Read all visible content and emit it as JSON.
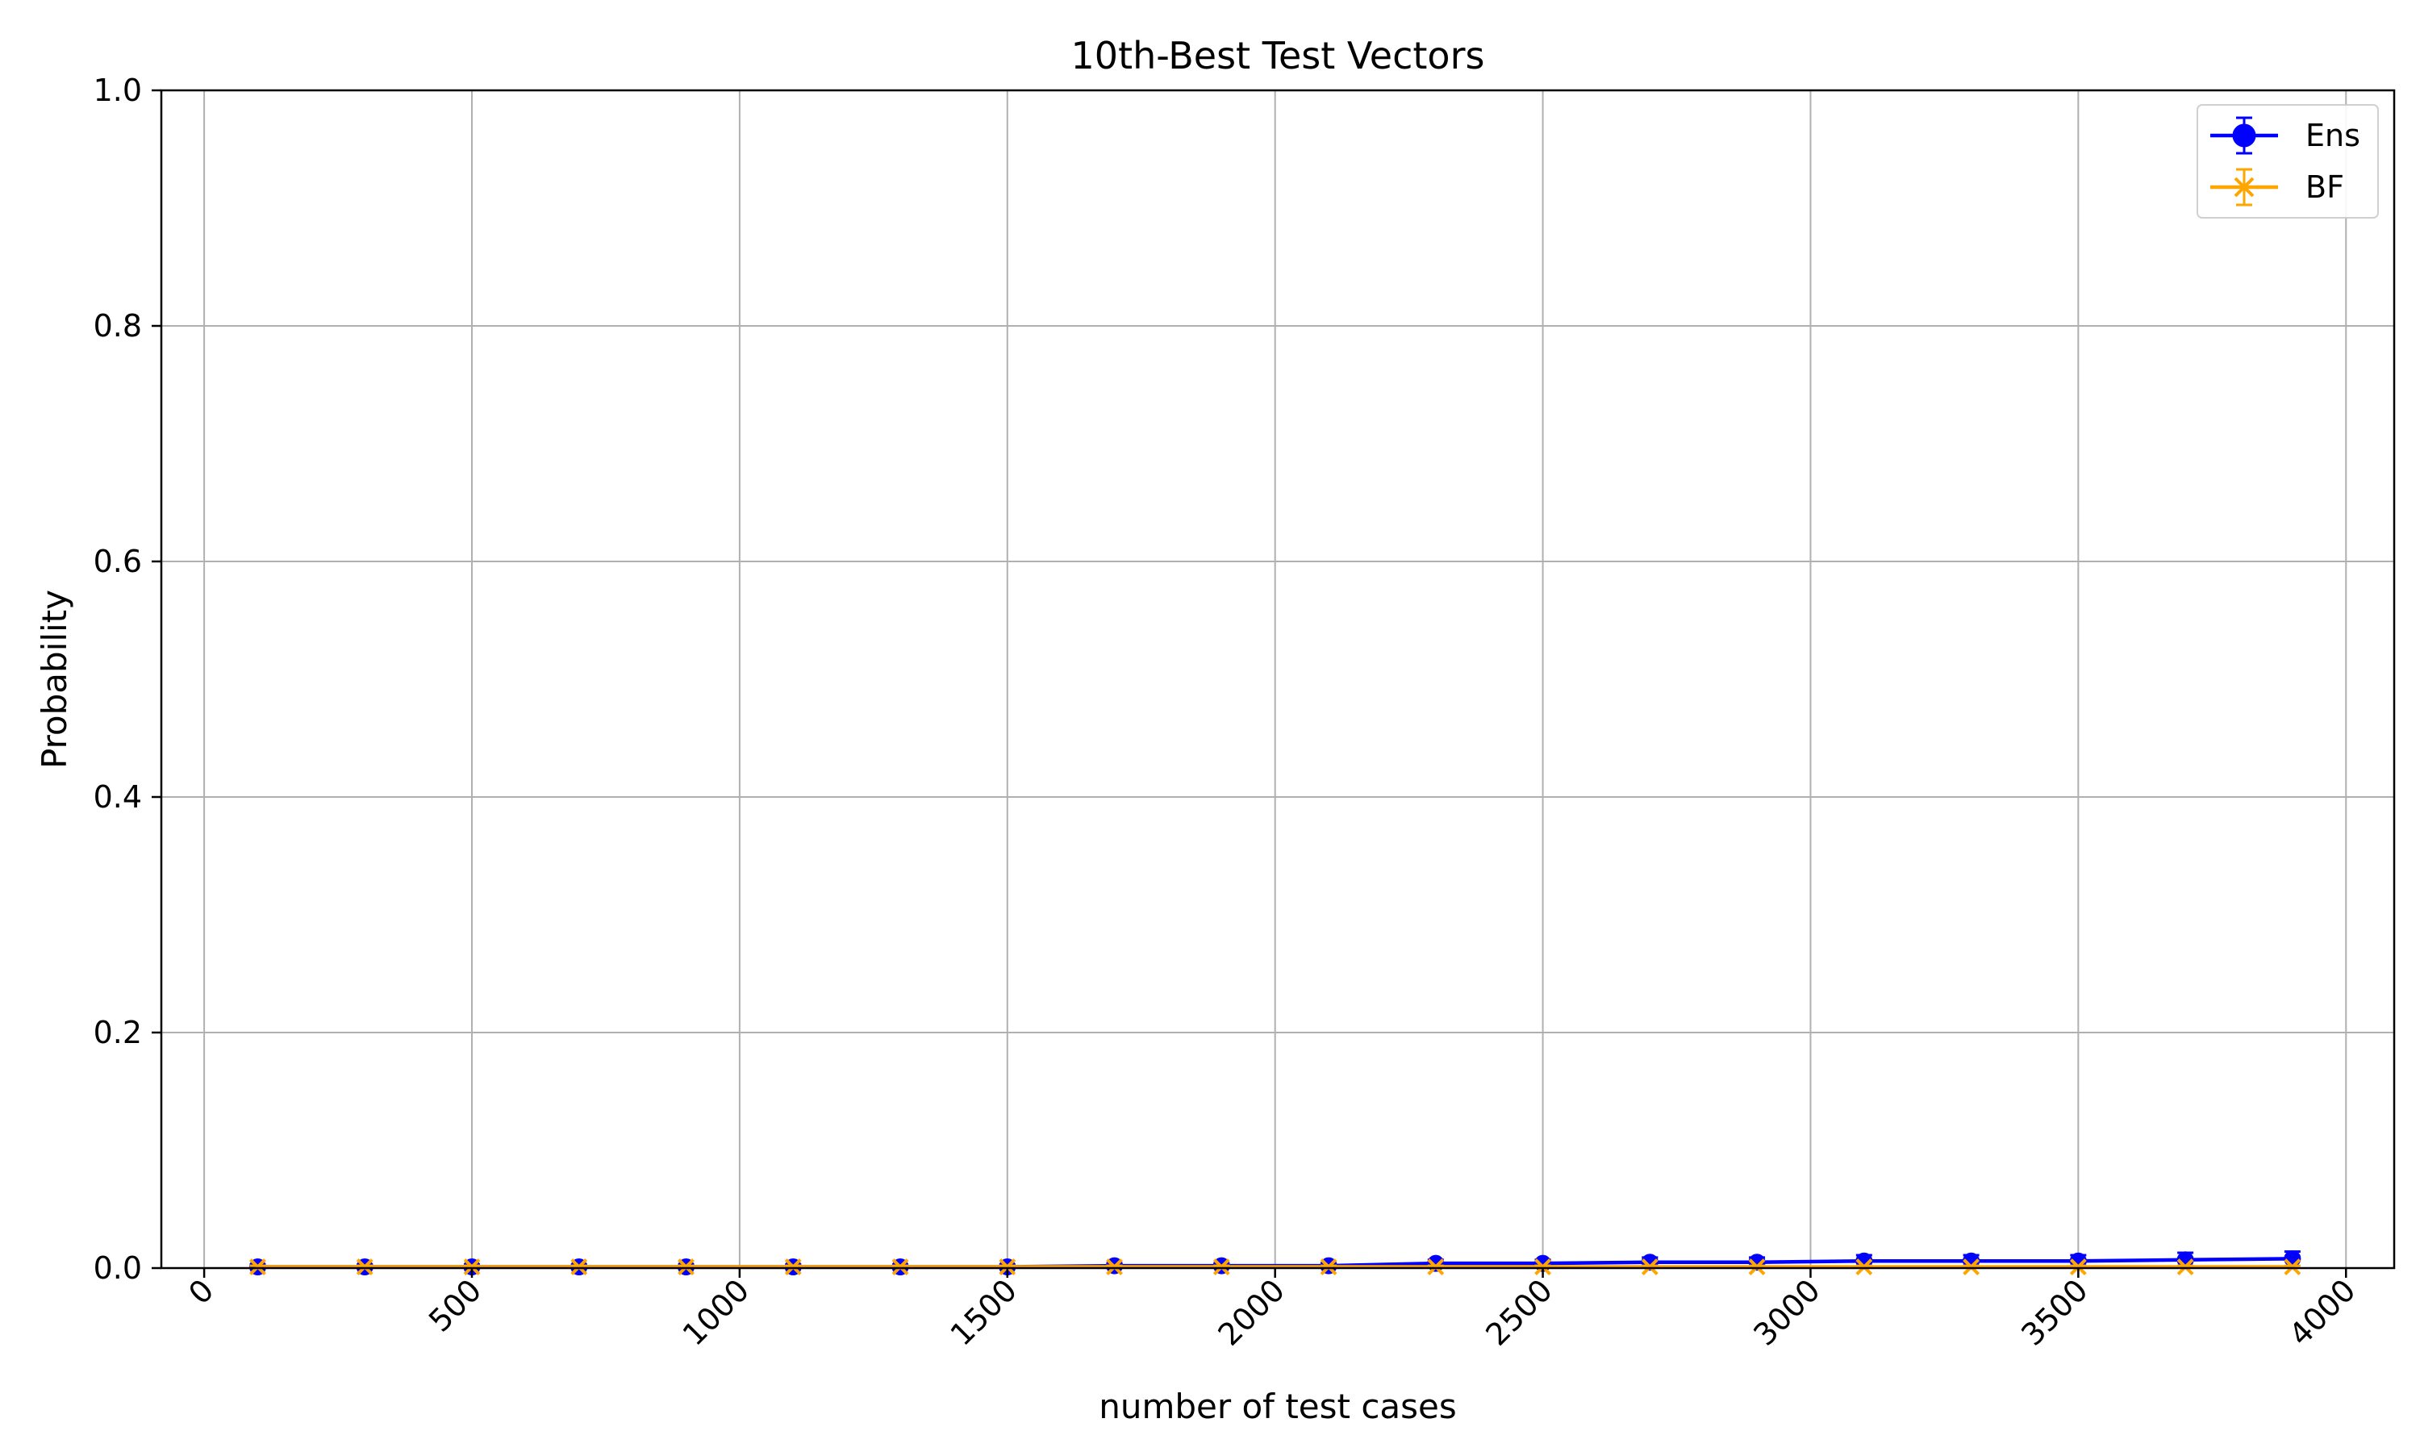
{
  "chart_data": {
    "type": "line",
    "title": "10th-Best Test Vectors",
    "xlabel": "number of test cases",
    "ylabel": "Probability",
    "xlim": [
      -80,
      4090
    ],
    "ylim": [
      0.0,
      1.0
    ],
    "xticks": [
      0,
      500,
      1000,
      1500,
      2000,
      2500,
      3000,
      3500,
      4000
    ],
    "xtick_labels": [
      "0",
      "500",
      "1000",
      "1500",
      "2000",
      "2500",
      "3000",
      "3500",
      "4000"
    ],
    "yticks": [
      0.0,
      0.2,
      0.4,
      0.6,
      0.8,
      1.0
    ],
    "ytick_labels": [
      "0.0",
      "0.2",
      "0.4",
      "0.6",
      "0.8",
      "1.0"
    ],
    "grid": true,
    "legend_position": "top-right",
    "x": [
      100,
      300,
      500,
      700,
      900,
      1100,
      1300,
      1500,
      1700,
      1900,
      2100,
      2300,
      2500,
      2700,
      2900,
      3100,
      3300,
      3500,
      3700,
      3900
    ],
    "series": [
      {
        "name": "Ens",
        "color": "#0000ff",
        "marker": "circle",
        "values": [
          0.001,
          0.001,
          0.001,
          0.001,
          0.001,
          0.001,
          0.001,
          0.001,
          0.002,
          0.002,
          0.002,
          0.004,
          0.004,
          0.005,
          0.005,
          0.006,
          0.006,
          0.006,
          0.007,
          0.008
        ],
        "errors": [
          0.002,
          0.002,
          0.002,
          0.002,
          0.002,
          0.002,
          0.002,
          0.002,
          0.002,
          0.002,
          0.002,
          0.003,
          0.003,
          0.004,
          0.004,
          0.005,
          0.005,
          0.005,
          0.006,
          0.006
        ]
      },
      {
        "name": "BF",
        "color": "#ffa500",
        "marker": "x",
        "values": [
          0.001,
          0.001,
          0.001,
          0.001,
          0.001,
          0.001,
          0.001,
          0.001,
          0.001,
          0.001,
          0.001,
          0.001,
          0.001,
          0.001,
          0.001,
          0.001,
          0.001,
          0.001,
          0.001,
          0.001
        ],
        "errors": [
          0.001,
          0.001,
          0.001,
          0.001,
          0.001,
          0.001,
          0.001,
          0.001,
          0.001,
          0.001,
          0.001,
          0.001,
          0.001,
          0.001,
          0.001,
          0.001,
          0.001,
          0.001,
          0.001,
          0.001
        ]
      }
    ]
  }
}
